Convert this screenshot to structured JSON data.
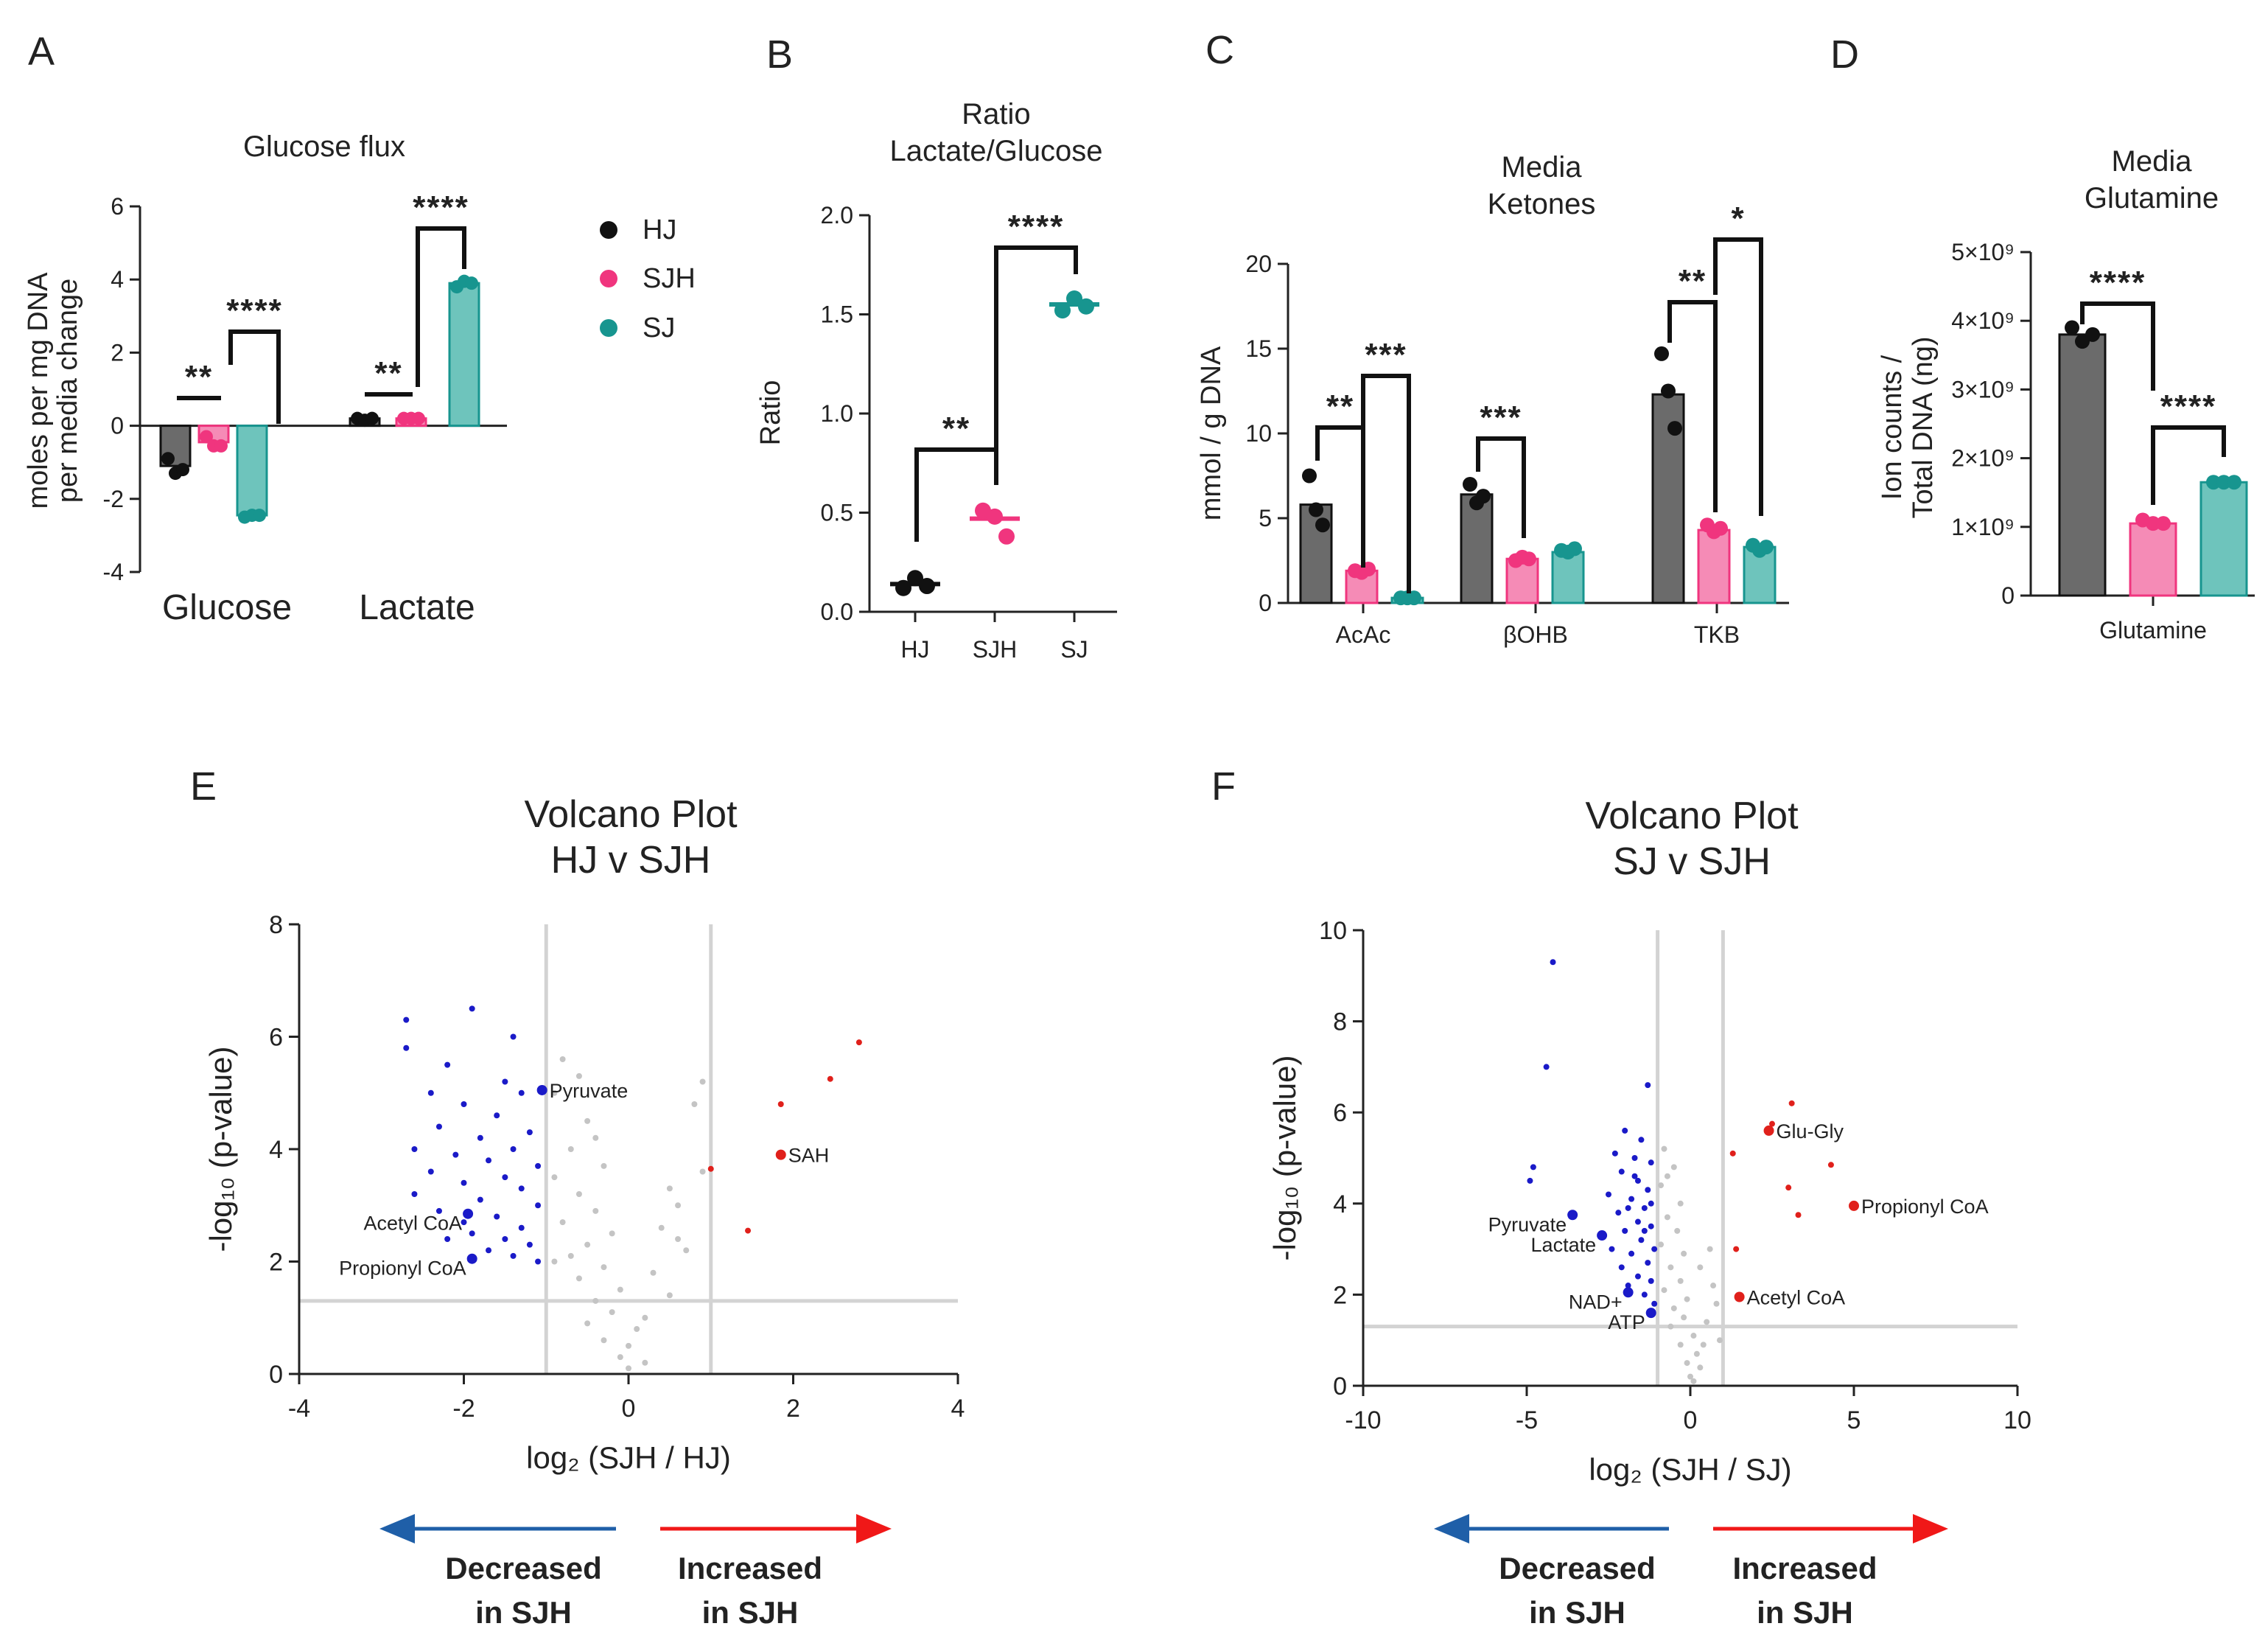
{
  "colors": {
    "HJ": "#111111",
    "HJ_bar": "#6b6b6b",
    "SJH": "#f0357e",
    "SJH_bar": "#f58bb6",
    "SJ": "#17958f",
    "SJ_bar": "#6ec4bc",
    "volcano_down": "#1a1ac8",
    "volcano_up": "#e0201b",
    "volcano_ns": "#c4c4c4",
    "arrow_down": "#1f5fa8",
    "arrow_up": "#f01818"
  },
  "panels": {
    "A": "A",
    "B": "B",
    "C": "C",
    "D": "D",
    "E": "E",
    "F": "F"
  },
  "legend": [
    "HJ",
    "SJH",
    "SJ"
  ],
  "chart_data": [
    {
      "id": "A",
      "type": "bar",
      "title": "Glucose flux",
      "ylabel_lines": [
        "moles per mg DNA",
        "per media change"
      ],
      "ylim": [
        -4,
        6
      ],
      "yticks": [
        "6",
        "4",
        "2",
        "0",
        "-2",
        "-4"
      ],
      "categories": [
        "Glucose",
        "Lactate"
      ],
      "series": [
        {
          "name": "HJ",
          "values": [
            -1.1,
            0.2
          ],
          "points": [
            [
              -0.9,
              -1.3,
              -1.2
            ],
            [
              0.2,
              0.15,
              0.2
            ]
          ]
        },
        {
          "name": "SJH",
          "values": [
            -0.45,
            0.2
          ],
          "points": [
            [
              -0.3,
              -0.55,
              -0.55
            ],
            [
              0.2,
              0.2,
              0.2
            ]
          ]
        },
        {
          "name": "SJ",
          "values": [
            -2.45,
            3.9
          ],
          "points": [
            [
              -2.5,
              -2.45,
              -2.45
            ],
            [
              3.8,
              3.95,
              3.9
            ]
          ]
        }
      ],
      "significance": [
        "**",
        "****",
        "**",
        "****"
      ]
    },
    {
      "id": "B",
      "type": "scatter",
      "title_lines": [
        "Ratio",
        "Lactate/Glucose"
      ],
      "ylabel": "Ratio",
      "ylim": [
        0,
        2
      ],
      "yticks": [
        "2.0",
        "1.5",
        "1.0",
        "0.5",
        "0.0"
      ],
      "categories": [
        "HJ",
        "SJH",
        "SJ"
      ],
      "means": [
        0.14,
        0.47,
        1.55
      ],
      "points": [
        [
          0.12,
          0.17,
          0.13
        ],
        [
          0.51,
          0.48,
          0.38
        ],
        [
          1.52,
          1.58,
          1.54
        ]
      ],
      "significance": [
        "**",
        "****"
      ]
    },
    {
      "id": "C",
      "type": "bar",
      "title_lines": [
        "Media",
        "Ketones"
      ],
      "ylabel": "mmol / g DNA",
      "ylim": [
        0,
        20
      ],
      "yticks": [
        "20",
        "15",
        "10",
        "5",
        "0"
      ],
      "categories": [
        "AcAc",
        "βOHB",
        "TKB"
      ],
      "series": [
        {
          "name": "HJ",
          "values": [
            5.8,
            6.4,
            12.3
          ],
          "points": [
            [
              7.5,
              5.5,
              4.6
            ],
            [
              7.0,
              5.9,
              6.3
            ],
            [
              14.7,
              12.5,
              10.3
            ]
          ]
        },
        {
          "name": "SJH",
          "values": [
            1.9,
            2.6,
            4.3
          ],
          "points": [
            [
              1.9,
              1.8,
              2.0
            ],
            [
              2.5,
              2.7,
              2.6
            ],
            [
              4.6,
              4.2,
              4.4
            ]
          ]
        },
        {
          "name": "SJ",
          "values": [
            0.3,
            3.0,
            3.3
          ],
          "points": [
            [
              0.3,
              0.3,
              0.3
            ],
            [
              3.1,
              3.0,
              3.2
            ],
            [
              3.4,
              3.1,
              3.3
            ]
          ]
        }
      ],
      "significance": [
        "**",
        "***",
        "***",
        "**",
        "*"
      ]
    },
    {
      "id": "D",
      "type": "bar",
      "title_lines": [
        "Media",
        "Glutamine"
      ],
      "ylabel_lines": [
        "Ion counts /",
        "Total DNA (ng)"
      ],
      "ylim": [
        0,
        5000000000
      ],
      "yticks": [
        "5×10⁹",
        "4×10⁹",
        "3×10⁹",
        "2×10⁹",
        "1×10⁹",
        "0"
      ],
      "categories": [
        "Glutamine"
      ],
      "series": [
        {
          "name": "HJ",
          "values": [
            3800000000
          ],
          "points": [
            [
              3900000000,
              3700000000,
              3800000000
            ]
          ]
        },
        {
          "name": "SJH",
          "values": [
            1050000000
          ],
          "points": [
            [
              1100000000,
              1050000000,
              1050000000
            ]
          ]
        },
        {
          "name": "SJ",
          "values": [
            1650000000
          ],
          "points": [
            [
              1650000000,
              1650000000,
              1650000000
            ]
          ]
        }
      ],
      "significance": [
        "****",
        "****"
      ]
    },
    {
      "id": "E",
      "type": "scatter",
      "title_lines": [
        "Volcano  Plot",
        "HJ v SJH"
      ],
      "xlabel": "log₂ (SJH / HJ)",
      "ylabel": "-log₁₀ (p-value)",
      "xlim": [
        -4,
        4
      ],
      "ylim": [
        0,
        8
      ],
      "xticks": [
        "-4",
        "-2",
        "0",
        "2",
        "4"
      ],
      "yticks": [
        "8",
        "6",
        "4",
        "2",
        "0"
      ],
      "thresholds": {
        "fc": [
          -1,
          1
        ],
        "p": 1.3
      },
      "labeled_points": [
        {
          "label": "Pyruvate",
          "x": -1.05,
          "y": 5.05,
          "group": "down"
        },
        {
          "label": "Acetyl CoA",
          "x": -1.95,
          "y": 2.85,
          "group": "down"
        },
        {
          "label": "Propionyl CoA",
          "x": -1.9,
          "y": 2.05,
          "group": "down"
        },
        {
          "label": "SAH",
          "x": 1.85,
          "y": 3.9,
          "group": "up"
        }
      ],
      "up_points": [
        [
          2.8,
          5.9
        ],
        [
          2.45,
          5.25
        ],
        [
          1.85,
          4.8
        ],
        [
          1.0,
          3.65
        ],
        [
          1.45,
          2.55
        ]
      ],
      "down_points": [
        [
          -2.7,
          6.3
        ],
        [
          -2.7,
          5.8
        ],
        [
          -1.9,
          6.5
        ],
        [
          -1.4,
          6.0
        ],
        [
          -2.2,
          5.5
        ],
        [
          -1.5,
          5.2
        ],
        [
          -2.4,
          5.0
        ],
        [
          -1.3,
          5.0
        ],
        [
          -2.0,
          4.8
        ],
        [
          -1.6,
          4.6
        ],
        [
          -2.3,
          4.4
        ],
        [
          -1.2,
          4.3
        ],
        [
          -1.8,
          4.2
        ],
        [
          -2.6,
          4.0
        ],
        [
          -1.4,
          4.0
        ],
        [
          -2.1,
          3.9
        ],
        [
          -1.7,
          3.8
        ],
        [
          -1.1,
          3.7
        ],
        [
          -2.4,
          3.6
        ],
        [
          -1.5,
          3.5
        ],
        [
          -2.0,
          3.4
        ],
        [
          -1.3,
          3.3
        ],
        [
          -2.6,
          3.2
        ],
        [
          -1.8,
          3.1
        ],
        [
          -1.1,
          3.0
        ],
        [
          -2.3,
          2.9
        ],
        [
          -1.6,
          2.8
        ],
        [
          -2.0,
          2.7
        ],
        [
          -1.3,
          2.6
        ],
        [
          -1.9,
          2.5
        ],
        [
          -1.5,
          2.4
        ],
        [
          -2.2,
          2.4
        ],
        [
          -1.2,
          2.3
        ],
        [
          -1.7,
          2.2
        ],
        [
          -1.4,
          2.1
        ],
        [
          -1.1,
          2.0
        ]
      ],
      "ns_points": [
        [
          -0.8,
          5.6
        ],
        [
          -0.6,
          5.3
        ],
        [
          -0.9,
          5.0
        ],
        [
          -0.5,
          4.5
        ],
        [
          -0.7,
          4.0
        ],
        [
          -0.3,
          3.7
        ],
        [
          -0.9,
          3.5
        ],
        [
          -0.6,
          3.2
        ],
        [
          -0.4,
          2.9
        ],
        [
          -0.8,
          2.7
        ],
        [
          -0.2,
          2.5
        ],
        [
          -0.5,
          2.3
        ],
        [
          -0.7,
          2.1
        ],
        [
          -0.3,
          1.9
        ],
        [
          -0.6,
          1.7
        ],
        [
          -0.1,
          1.5
        ],
        [
          -0.4,
          1.3
        ],
        [
          -0.2,
          1.1
        ],
        [
          -0.5,
          0.9
        ],
        [
          0.1,
          0.8
        ],
        [
          -0.3,
          0.6
        ],
        [
          0.0,
          0.5
        ],
        [
          -0.1,
          0.3
        ],
        [
          0.2,
          0.2
        ],
        [
          0.0,
          0.1
        ],
        [
          0.9,
          5.2
        ],
        [
          0.8,
          4.8
        ],
        [
          0.5,
          3.3
        ],
        [
          0.6,
          3.0
        ],
        [
          0.4,
          2.6
        ],
        [
          0.7,
          2.2
        ],
        [
          0.3,
          1.8
        ],
        [
          0.5,
          1.4
        ],
        [
          0.2,
          1.0
        ],
        [
          0.9,
          3.6
        ],
        [
          -0.9,
          2.0
        ],
        [
          -0.4,
          4.2
        ],
        [
          0.6,
          2.4
        ]
      ]
    },
    {
      "id": "F",
      "type": "scatter",
      "title_lines": [
        "Volcano  Plot",
        "SJ v SJH"
      ],
      "xlabel": "log₂ (SJH / SJ)",
      "ylabel": "-log₁₀ (p-value)",
      "xlim": [
        -10,
        10
      ],
      "ylim": [
        0,
        10
      ],
      "xticks": [
        "-10",
        "-5",
        "0",
        "5",
        "10"
      ],
      "yticks": [
        "10",
        "8",
        "6",
        "4",
        "2",
        "0"
      ],
      "thresholds": {
        "fc": [
          -1,
          1
        ],
        "p": 1.3
      },
      "labeled_points": [
        {
          "label": "Pyruvate",
          "x": -3.6,
          "y": 3.75,
          "group": "down"
        },
        {
          "label": "Lactate",
          "x": -2.7,
          "y": 3.3,
          "group": "down"
        },
        {
          "label": "NAD+",
          "x": -1.9,
          "y": 2.05,
          "group": "down"
        },
        {
          "label": "ATP",
          "x": -1.2,
          "y": 1.6,
          "group": "down"
        },
        {
          "label": "Glu-Gly",
          "x": 2.4,
          "y": 5.6,
          "group": "up"
        },
        {
          "label": "Propionyl CoA",
          "x": 5.0,
          "y": 3.95,
          "group": "up"
        },
        {
          "label": "Acetyl CoA",
          "x": 1.5,
          "y": 1.95,
          "group": "up"
        }
      ],
      "up_points": [
        [
          3.1,
          6.2
        ],
        [
          2.5,
          5.75
        ],
        [
          4.3,
          4.85
        ],
        [
          1.3,
          5.1
        ],
        [
          3.0,
          4.35
        ],
        [
          3.3,
          3.75
        ],
        [
          1.4,
          3.0
        ]
      ],
      "down_points": [
        [
          -4.2,
          9.3
        ],
        [
          -4.4,
          7.0
        ],
        [
          -1.3,
          6.6
        ],
        [
          -4.8,
          4.8
        ],
        [
          -4.9,
          4.5
        ],
        [
          -2.0,
          5.6
        ],
        [
          -1.5,
          5.4
        ],
        [
          -2.3,
          5.1
        ],
        [
          -1.7,
          5.0
        ],
        [
          -1.2,
          4.9
        ],
        [
          -2.1,
          4.7
        ],
        [
          -1.6,
          4.5
        ],
        [
          -1.3,
          4.3
        ],
        [
          -2.5,
          4.2
        ],
        [
          -1.8,
          4.1
        ],
        [
          -1.4,
          3.9
        ],
        [
          -2.2,
          3.8
        ],
        [
          -1.6,
          3.6
        ],
        [
          -1.2,
          3.5
        ],
        [
          -2.0,
          3.4
        ],
        [
          -1.5,
          3.2
        ],
        [
          -1.1,
          3.0
        ],
        [
          -1.8,
          2.9
        ],
        [
          -1.3,
          2.7
        ],
        [
          -2.1,
          2.6
        ],
        [
          -1.6,
          2.4
        ],
        [
          -1.2,
          2.3
        ],
        [
          -1.9,
          2.2
        ],
        [
          -1.4,
          2.0
        ],
        [
          -1.1,
          1.8
        ],
        [
          -1.7,
          4.6
        ],
        [
          -1.9,
          3.9
        ],
        [
          -1.4,
          3.4
        ],
        [
          -1.2,
          4.0
        ],
        [
          -2.4,
          3.0
        ]
      ],
      "ns_points": [
        [
          -0.8,
          5.2
        ],
        [
          -0.5,
          4.8
        ],
        [
          -0.9,
          4.4
        ],
        [
          -0.3,
          4.0
        ],
        [
          -0.7,
          3.7
        ],
        [
          -0.4,
          3.4
        ],
        [
          -0.9,
          3.1
        ],
        [
          -0.2,
          2.9
        ],
        [
          -0.6,
          2.6
        ],
        [
          -0.3,
          2.3
        ],
        [
          -0.8,
          2.1
        ],
        [
          -0.1,
          1.9
        ],
        [
          -0.5,
          1.7
        ],
        [
          -0.2,
          1.5
        ],
        [
          -0.6,
          1.3
        ],
        [
          0.1,
          1.1
        ],
        [
          -0.3,
          0.9
        ],
        [
          0.2,
          0.7
        ],
        [
          -0.1,
          0.5
        ],
        [
          0.3,
          0.4
        ],
        [
          0.0,
          0.2
        ],
        [
          0.4,
          0.9
        ],
        [
          0.5,
          1.4
        ],
        [
          0.7,
          2.2
        ],
        [
          0.6,
          3.0
        ],
        [
          0.8,
          1.8
        ],
        [
          0.3,
          2.6
        ],
        [
          0.9,
          1.0
        ],
        [
          -0.7,
          4.6
        ],
        [
          0.1,
          0.1
        ]
      ]
    }
  ],
  "arrows": {
    "E": {
      "down_lines": [
        "Decreased",
        "in SJH"
      ],
      "up_lines": [
        "Increased",
        "in SJH"
      ]
    },
    "F": {
      "down_lines": [
        "Decreased",
        "in SJH"
      ],
      "up_lines": [
        "Increased",
        "in SJH"
      ]
    }
  }
}
